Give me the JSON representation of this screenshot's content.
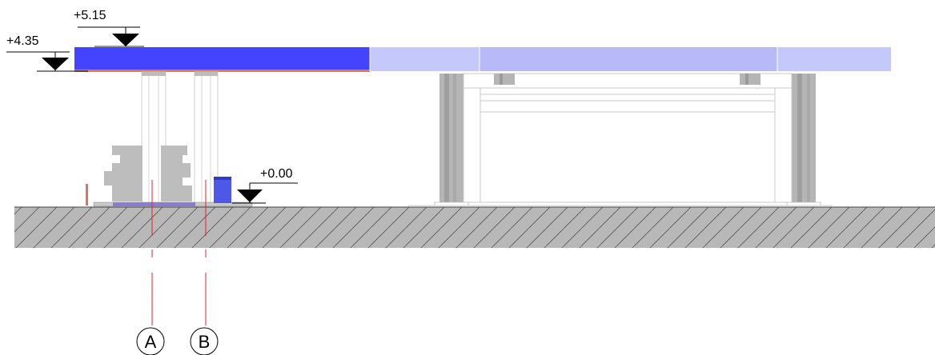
{
  "levels": {
    "roof_top": "+5.15",
    "canopy_underside": "+4.35",
    "ground": "+0.00"
  },
  "axes": {
    "a": "A",
    "b": "B"
  },
  "colors": {
    "roof_solid": "#4444ff",
    "roof_transparent": "#c5c8fb",
    "roof_transparent_mid": "#b7baf7",
    "roof_edge": "#e07b45",
    "ground_hatch": "#b9b9b9",
    "grid_line": "#e8202a",
    "steel_gray": "#bdbdbd",
    "dark_gray": "#9a9a9a"
  }
}
